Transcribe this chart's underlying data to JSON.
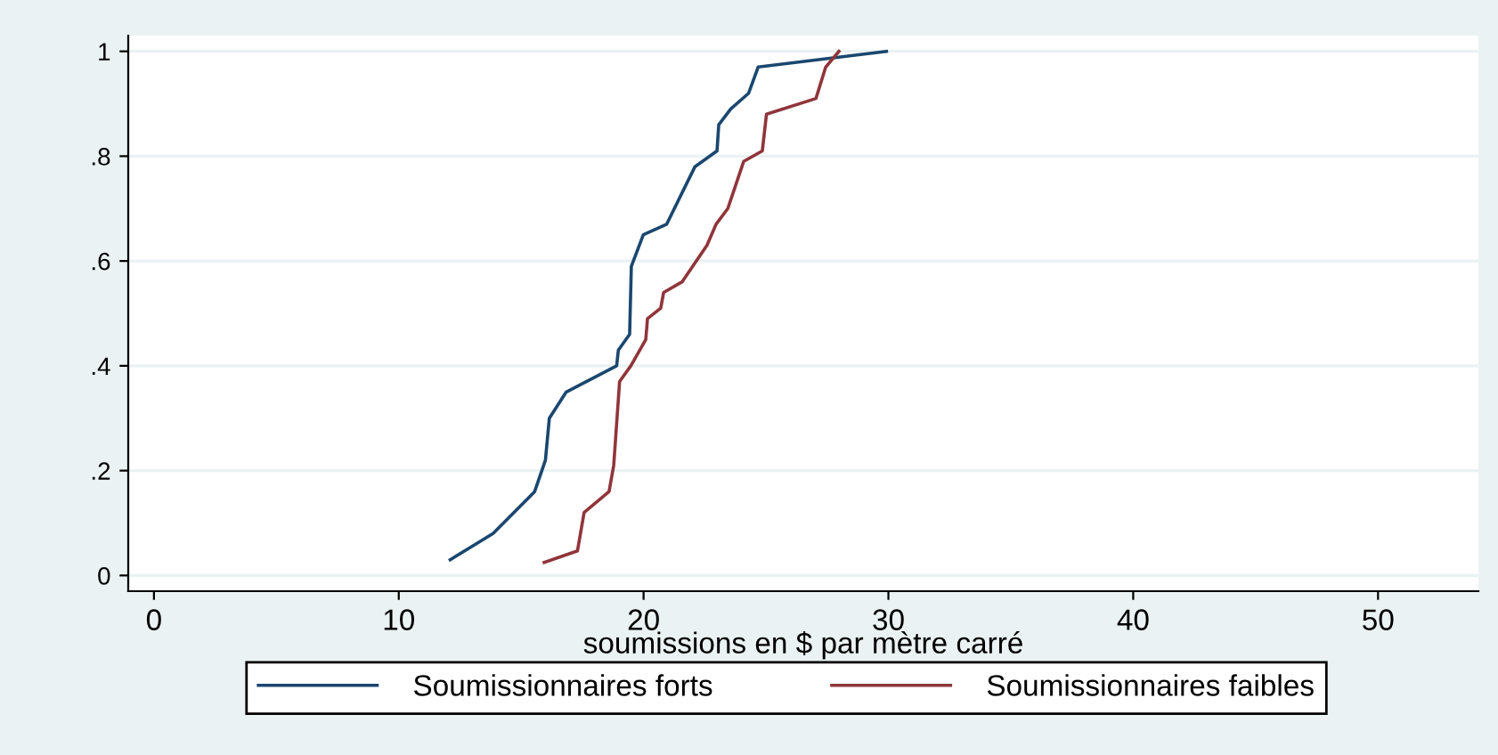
{
  "chart_data": {
    "type": "line",
    "xlabel": "soumissions en $ par mètre carré",
    "xlim": [
      -1.05,
      54.1
    ],
    "xticks": [
      0,
      10,
      20,
      30,
      40,
      50
    ],
    "ylim": [
      -0.03,
      1.03
    ],
    "yticks": [
      0,
      {
        "value": 0.2,
        "label": ".2"
      },
      {
        "value": 0.4,
        "label": ".4"
      },
      {
        "value": 0.6,
        "label": ".6"
      },
      {
        "value": 0.8,
        "label": ".8"
      },
      1
    ],
    "grid": "y",
    "legend": "bottom",
    "line_style": "solid",
    "marker": "none",
    "series": [
      {
        "name": "Soumissionnaires forts",
        "color": "#1a476f",
        "x": [
          12.1,
          13.85,
          15.55,
          15.99,
          16.15,
          16.84,
          18.9,
          18.97,
          19.43,
          19.5,
          19.99,
          20.94,
          22.1,
          23.0,
          23.07,
          23.56,
          24.29,
          24.68,
          29.92
        ],
        "values": [
          0.03,
          0.08,
          0.16,
          0.22,
          0.3,
          0.35,
          0.4,
          0.43,
          0.46,
          0.59,
          0.65,
          0.67,
          0.78,
          0.81,
          0.86,
          0.89,
          0.92,
          0.97,
          1.0
        ]
      },
      {
        "name": "Soumissionnaires faibles",
        "color": "#90353b",
        "x": [
          15.94,
          17.3,
          17.57,
          18.59,
          18.78,
          19.02,
          19.48,
          20.09,
          20.16,
          20.7,
          20.82,
          21.57,
          22.59,
          22.96,
          23.44,
          23.8,
          24.09,
          24.85,
          25.02,
          27.04,
          27.44,
          27.98
        ],
        "values": [
          0.025,
          0.047,
          0.12,
          0.16,
          0.21,
          0.37,
          0.4,
          0.45,
          0.49,
          0.51,
          0.54,
          0.56,
          0.63,
          0.67,
          0.7,
          0.75,
          0.79,
          0.81,
          0.88,
          0.91,
          0.97,
          1.0
        ]
      }
    ]
  }
}
